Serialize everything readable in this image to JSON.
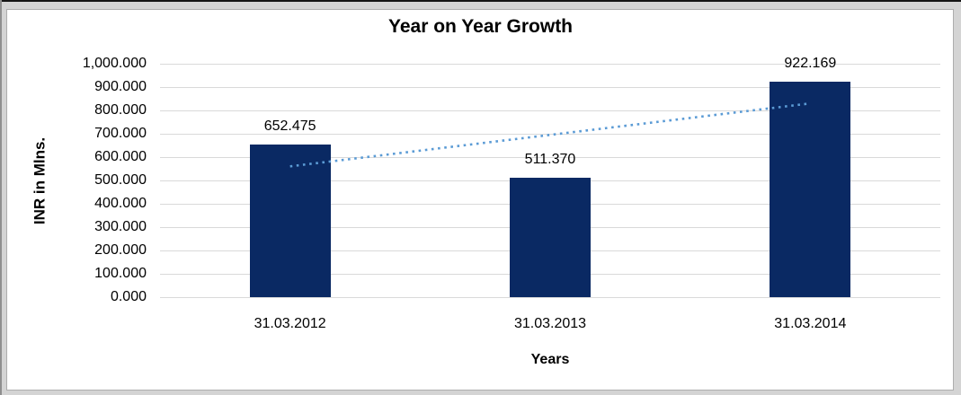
{
  "chart_data": {
    "type": "bar",
    "title": "Year on Year Growth",
    "xlabel": "Years",
    "ylabel": "INR in Mlns.",
    "categories": [
      "31.03.2012",
      "31.03.2013",
      "31.03.2014"
    ],
    "values": [
      652.475,
      511.37,
      922.169
    ],
    "data_labels": [
      "652.475",
      "511.370",
      "922.169"
    ],
    "ylim": [
      0,
      1000
    ],
    "ytick_step": 100,
    "ytick_labels": [
      "0.000",
      "100.000",
      "200.000",
      "300.000",
      "400.000",
      "500.000",
      "600.000",
      "700.000",
      "800.000",
      "900.000",
      "1,000.000"
    ],
    "grid": true,
    "legend": "none",
    "bar_color": "#0A2963",
    "gridline_color": "#D9D9D9",
    "text_color": "#000000",
    "trendline": {
      "type": "linear",
      "style": "dotted",
      "color": "#5B9BD5"
    }
  }
}
